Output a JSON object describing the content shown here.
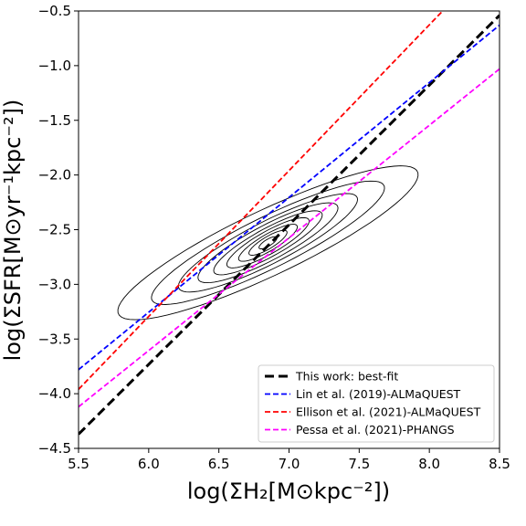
{
  "chart_data": {
    "type": "line",
    "xlim": [
      5.5,
      8.5
    ],
    "ylim": [
      -4.5,
      -0.5
    ],
    "x_ticks": [
      5.5,
      6.0,
      6.5,
      7.0,
      7.5,
      8.0,
      8.5
    ],
    "x_tick_labels": [
      "5.5",
      "6.0",
      "6.5",
      "7.0",
      "7.5",
      "8.0",
      "8.5"
    ],
    "y_ticks": [
      -4.5,
      -4.0,
      -3.5,
      -3.0,
      -2.5,
      -2.0,
      -1.5,
      -1.0,
      -0.5
    ],
    "y_tick_labels": [
      "−4.5",
      "−4.0",
      "−3.5",
      "−3.0",
      "−2.5",
      "−2.0",
      "−1.5",
      "−1.0",
      "−0.5"
    ],
    "xlabel": "log(ΣH₂[M⊙kpc⁻²])",
    "ylabel": "log(ΣSFR[M⊙yr⁻¹kpc⁻²])",
    "grid": false,
    "legend_position": "lower-right",
    "series": [
      {
        "name": "This work: best-fit",
        "color": "#000000",
        "style": "dashed-thick",
        "x": [
          5.5,
          8.5
        ],
        "y": [
          -4.37,
          -0.54
        ]
      },
      {
        "name": "Lin et al. (2019)-ALMaQUEST",
        "color": "#0000ff",
        "style": "dashed",
        "x": [
          5.5,
          8.5
        ],
        "y": [
          -3.78,
          -0.63
        ]
      },
      {
        "name": "Ellison et al. (2021)-ALMaQUEST",
        "color": "#ff0000",
        "style": "dashed",
        "x": [
          5.5,
          8.5
        ],
        "y": [
          -3.96,
          0.04
        ]
      },
      {
        "name": "Pessa et al. (2021)-PHANGS",
        "color": "#ff00ff",
        "style": "dashed",
        "x": [
          5.5,
          8.5
        ],
        "y": [
          -4.12,
          -1.03
        ]
      }
    ],
    "contours": {
      "center": [
        6.85,
        -2.62
      ],
      "levels": [
        {
          "a": 1.25,
          "b": 0.28,
          "angle_deg": 32
        },
        {
          "a": 0.98,
          "b": 0.22,
          "angle_deg": 33
        },
        {
          "a": 0.76,
          "b": 0.18,
          "angle_deg": 34
        },
        {
          "a": 0.6,
          "b": 0.15,
          "angle_deg": 35
        },
        {
          "a": 0.47,
          "b": 0.12,
          "angle_deg": 36
        },
        {
          "a": 0.36,
          "b": 0.095,
          "angle_deg": 37
        },
        {
          "a": 0.26,
          "b": 0.07,
          "angle_deg": 38
        },
        {
          "a": 0.17,
          "b": 0.05,
          "angle_deg": 39
        },
        {
          "a": 0.08,
          "b": 0.028,
          "angle_deg": 40
        }
      ]
    }
  }
}
